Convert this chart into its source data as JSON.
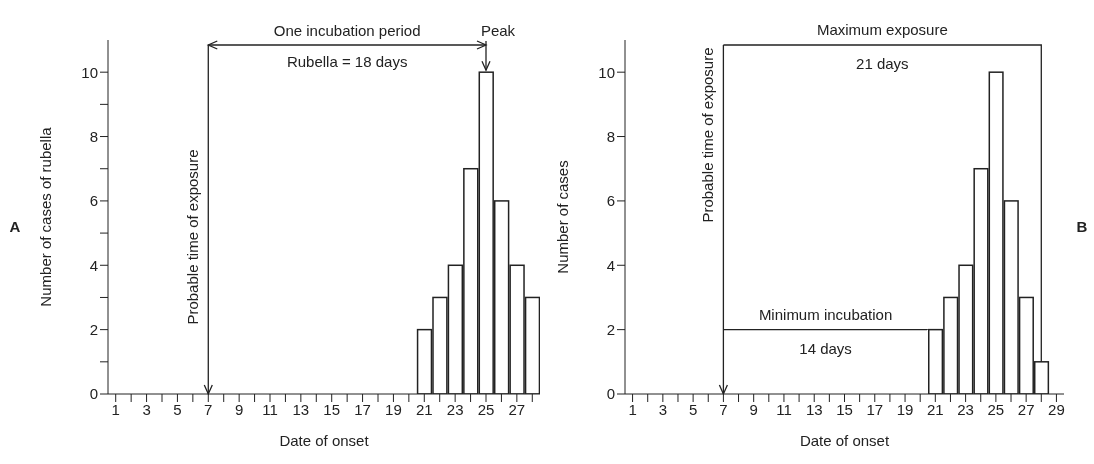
{
  "chart_data": [
    {
      "type": "bar",
      "xlabel": "Date of onset",
      "ylabel": "Number of cases of rubella",
      "color": "#ffffff",
      "x": [
        21,
        22,
        23,
        24,
        25,
        26,
        27,
        28
      ],
      "values": [
        2,
        3,
        4,
        7,
        10,
        6,
        4,
        3
      ],
      "xlim": [
        0.5,
        28.5
      ],
      "xticks": [
        1,
        {
          "value": 2,
          "label": null
        },
        3,
        {
          "value": 4,
          "label": null
        },
        5,
        {
          "value": 6,
          "label": null
        },
        7,
        {
          "value": 8,
          "label": null
        },
        9,
        {
          "value": 10,
          "label": null
        },
        11,
        {
          "value": 12,
          "label": null
        },
        13,
        {
          "value": 14,
          "label": null
        },
        15,
        {
          "value": 16,
          "label": null
        },
        17,
        {
          "value": 18,
          "label": null
        },
        19,
        {
          "value": 20,
          "label": null
        },
        21,
        {
          "value": 22,
          "label": null
        },
        23,
        {
          "value": 24,
          "label": null
        },
        25,
        {
          "value": 26,
          "label": null
        },
        27,
        {
          "value": 28,
          "label": null
        }
      ],
      "ylim": [
        0,
        11
      ],
      "yticks": [
        0,
        {
          "value": 1,
          "label": null
        },
        2,
        {
          "value": 3,
          "label": null
        },
        4,
        {
          "value": 5,
          "label": null
        },
        6,
        {
          "value": 7,
          "label": null
        },
        8,
        {
          "value": 9,
          "label": null
        },
        10
      ],
      "ref_lines": [
        {
          "axis": "x",
          "value": 7,
          "label": "Probable time of exposure"
        }
      ],
      "annotations": [
        "One incubation period",
        "Rubella = 18 days",
        {
          "text": "Peak",
          "x": 25,
          "y": 10
        },
        "A"
      ]
    },
    {
      "type": "bar",
      "xlabel": "Date of onset",
      "ylabel": "Number of cases",
      "color": "#ffffff",
      "x": [
        21,
        22,
        23,
        24,
        25,
        26,
        27,
        28
      ],
      "values": [
        2,
        3,
        4,
        7,
        10,
        6,
        3,
        1
      ],
      "xlim": [
        0.5,
        29.5
      ],
      "xticks": [
        1,
        {
          "value": 2,
          "label": null
        },
        3,
        {
          "value": 4,
          "label": null
        },
        5,
        {
          "value": 6,
          "label": null
        },
        7,
        {
          "value": 8,
          "label": null
        },
        9,
        {
          "value": 10,
          "label": null
        },
        11,
        {
          "value": 12,
          "label": null
        },
        13,
        {
          "value": 14,
          "label": null
        },
        15,
        {
          "value": 16,
          "label": null
        },
        17,
        {
          "value": 18,
          "label": null
        },
        19,
        {
          "value": 20,
          "label": null
        },
        21,
        {
          "value": 22,
          "label": null
        },
        23,
        {
          "value": 24,
          "label": null
        },
        25,
        {
          "value": 26,
          "label": null
        },
        27,
        {
          "value": 28,
          "label": null
        },
        29
      ],
      "ylim": [
        0,
        11
      ],
      "yticks": [
        0,
        2,
        4,
        6,
        8,
        10
      ],
      "ref_lines": [
        {
          "axis": "x",
          "value": 7,
          "label": "Probable time of exposure"
        }
      ],
      "annotations": [
        "Maximum exposure",
        "21 days",
        {
          "text": "Minimum incubation",
          "x": 21,
          "y": 2
        },
        "14 days",
        "B"
      ]
    }
  ]
}
